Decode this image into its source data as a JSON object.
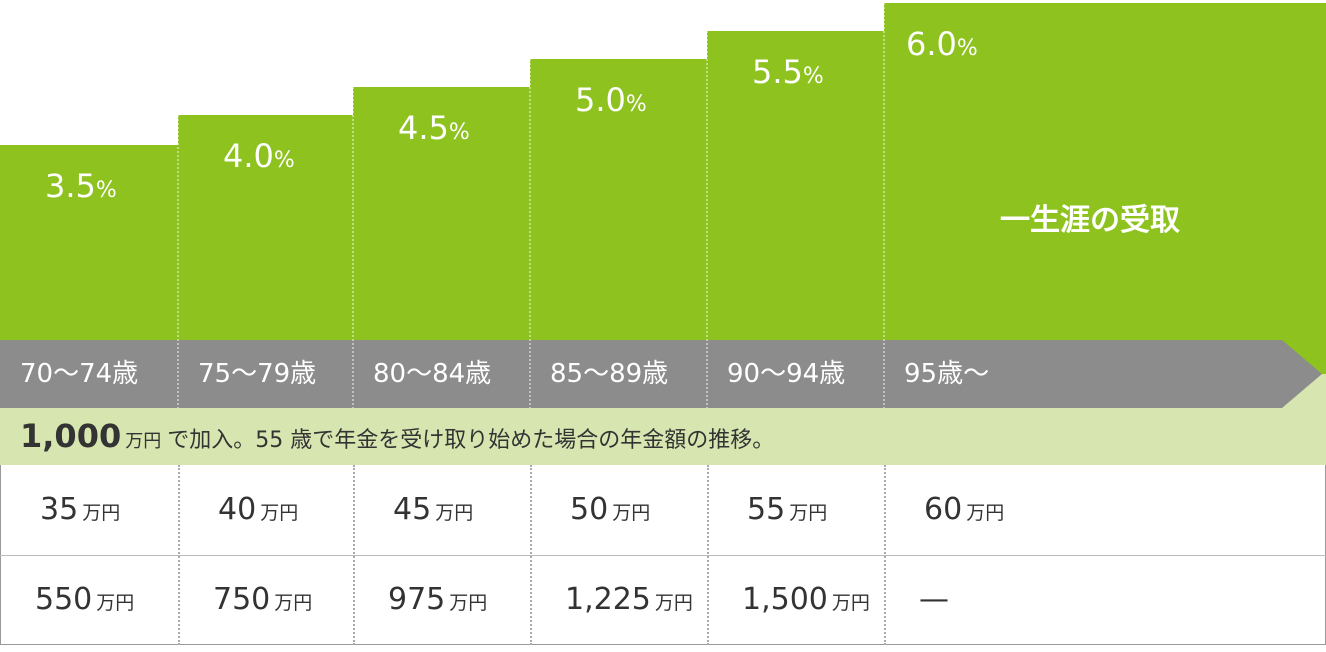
{
  "rate_unit": "%",
  "amount_unit": "万円",
  "steps": [
    {
      "rate": "3.5",
      "age": "70〜74歳",
      "annual": "35",
      "total": "550"
    },
    {
      "rate": "4.0",
      "age": "75〜79歳",
      "annual": "40",
      "total": "750"
    },
    {
      "rate": "4.5",
      "age": "80〜84歳",
      "annual": "45",
      "total": "975"
    },
    {
      "rate": "5.0",
      "age": "85〜89歳",
      "annual": "50",
      "total": "1,225"
    },
    {
      "rate": "5.5",
      "age": "90〜94歳",
      "annual": "55",
      "total": "1,500"
    },
    {
      "rate": "6.0",
      "age": "95歳〜",
      "annual": "60",
      "total": "—"
    }
  ],
  "lifetime": "一生涯の受取",
  "caption": {
    "amount": "1,000",
    "text": "で加入。55 歳で年金を受け取り始めた場合の年金額の推移。"
  }
}
